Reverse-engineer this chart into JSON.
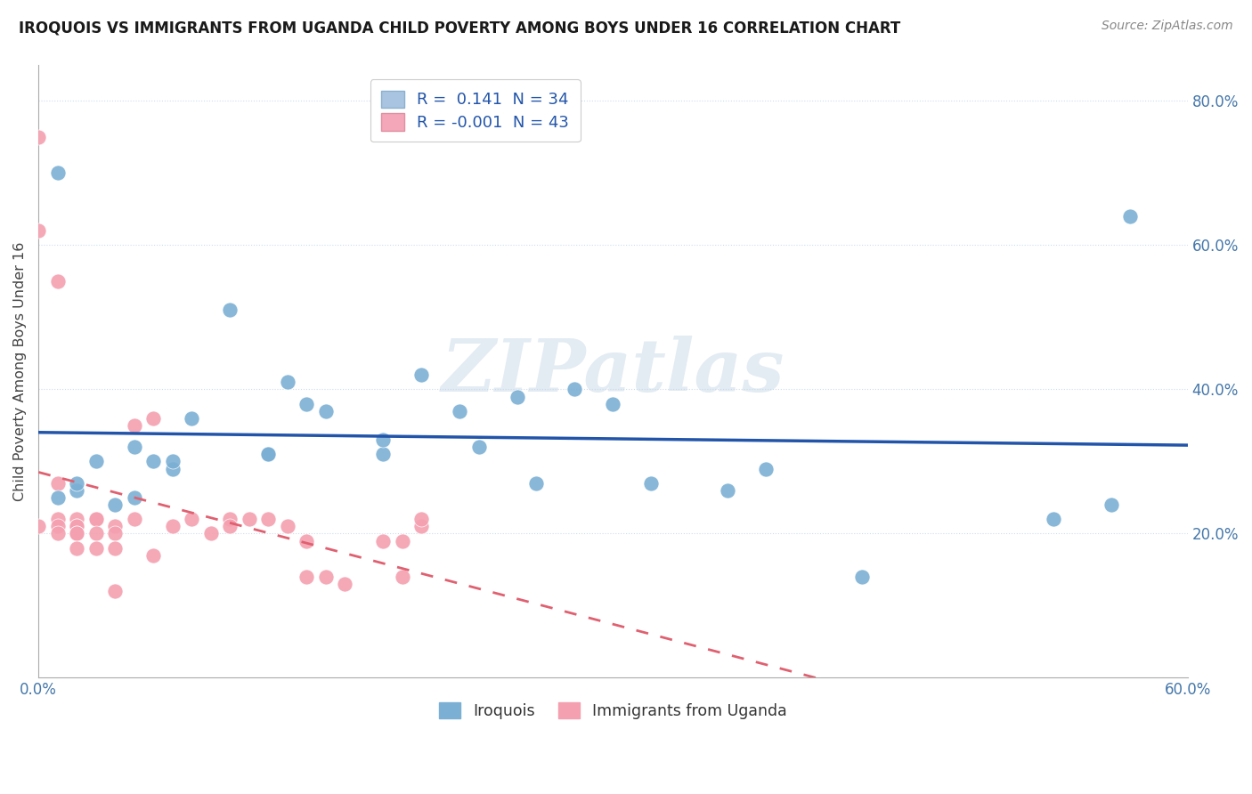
{
  "title": "IROQUOIS VS IMMIGRANTS FROM UGANDA CHILD POVERTY AMONG BOYS UNDER 16 CORRELATION CHART",
  "source": "Source: ZipAtlas.com",
  "ylabel": "Child Poverty Among Boys Under 16",
  "xlim": [
    0.0,
    0.6
  ],
  "ylim": [
    0.0,
    0.85
  ],
  "ytick_vals": [
    0.0,
    0.2,
    0.4,
    0.6,
    0.8
  ],
  "ytick_labels_right": [
    "",
    "20.0%",
    "40.0%",
    "60.0%",
    "80.0%"
  ],
  "xtick_vals": [
    0.0,
    0.6
  ],
  "xtick_labels": [
    "0.0%",
    "60.0%"
  ],
  "iroquois_color": "#7bafd4",
  "uganda_color": "#f4a0b0",
  "iroquois_line_color": "#2255aa",
  "uganda_line_color": "#e06070",
  "grid_color": "#ccddee",
  "watermark": "ZIPatlas",
  "watermark_color": "#c8d8e8",
  "r_iroquois": "0.141",
  "n_iroquois": "34",
  "r_uganda": "-0.001",
  "n_uganda": "43",
  "iroquois_x": [
    0.01,
    0.01,
    0.02,
    0.02,
    0.03,
    0.04,
    0.05,
    0.05,
    0.06,
    0.07,
    0.07,
    0.08,
    0.1,
    0.12,
    0.12,
    0.13,
    0.14,
    0.15,
    0.18,
    0.18,
    0.2,
    0.22,
    0.23,
    0.25,
    0.26,
    0.28,
    0.3,
    0.32,
    0.36,
    0.38,
    0.43,
    0.53,
    0.56,
    0.57
  ],
  "iroquois_y": [
    0.25,
    0.7,
    0.26,
    0.27,
    0.3,
    0.24,
    0.32,
    0.25,
    0.3,
    0.29,
    0.3,
    0.36,
    0.51,
    0.31,
    0.31,
    0.41,
    0.38,
    0.37,
    0.31,
    0.33,
    0.42,
    0.37,
    0.32,
    0.39,
    0.27,
    0.4,
    0.38,
    0.27,
    0.26,
    0.29,
    0.14,
    0.22,
    0.24,
    0.64
  ],
  "uganda_x": [
    0.0,
    0.0,
    0.0,
    0.01,
    0.01,
    0.01,
    0.01,
    0.01,
    0.02,
    0.02,
    0.02,
    0.02,
    0.02,
    0.02,
    0.03,
    0.03,
    0.03,
    0.03,
    0.04,
    0.04,
    0.04,
    0.04,
    0.05,
    0.05,
    0.06,
    0.06,
    0.07,
    0.08,
    0.09,
    0.1,
    0.1,
    0.11,
    0.12,
    0.13,
    0.14,
    0.14,
    0.15,
    0.16,
    0.18,
    0.19,
    0.19,
    0.2,
    0.2
  ],
  "uganda_y": [
    0.75,
    0.62,
    0.21,
    0.55,
    0.27,
    0.22,
    0.21,
    0.2,
    0.22,
    0.21,
    0.21,
    0.2,
    0.2,
    0.18,
    0.22,
    0.22,
    0.2,
    0.18,
    0.21,
    0.2,
    0.18,
    0.12,
    0.35,
    0.22,
    0.36,
    0.17,
    0.21,
    0.22,
    0.2,
    0.22,
    0.21,
    0.22,
    0.22,
    0.21,
    0.19,
    0.14,
    0.14,
    0.13,
    0.19,
    0.19,
    0.14,
    0.21,
    0.22
  ]
}
